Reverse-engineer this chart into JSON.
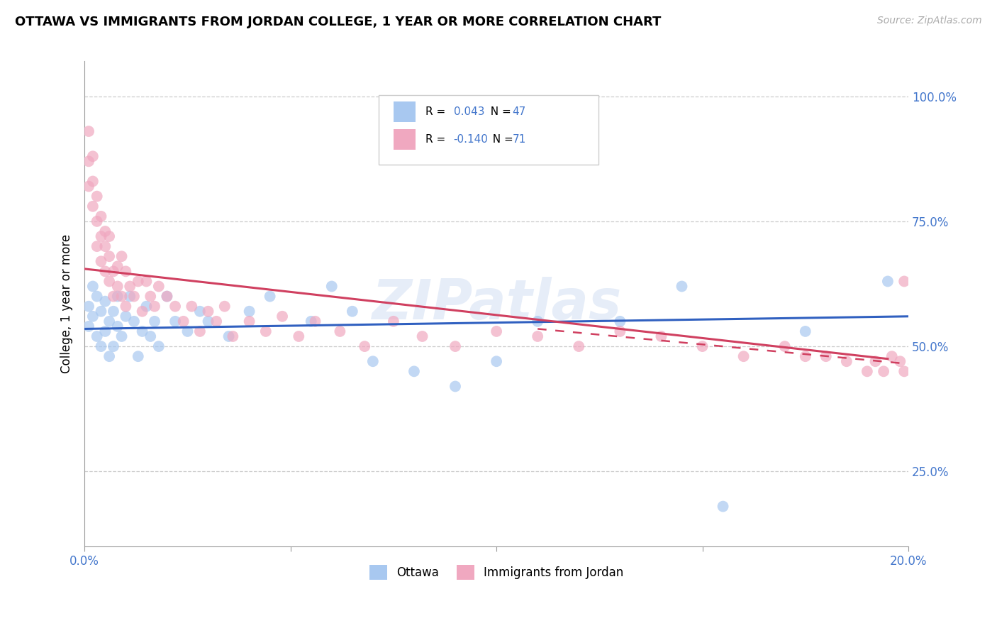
{
  "title": "OTTAWA VS IMMIGRANTS FROM JORDAN COLLEGE, 1 YEAR OR MORE CORRELATION CHART",
  "source": "Source: ZipAtlas.com",
  "ylabel": "College, 1 year or more",
  "legend_ottawa": "Ottawa",
  "legend_jordan": "Immigrants from Jordan",
  "R_ottawa": 0.043,
  "N_ottawa": 47,
  "R_jordan": -0.14,
  "N_jordan": 71,
  "color_ottawa": "#a8c8f0",
  "color_jordan": "#f0a8c0",
  "color_trend_ottawa": "#3060c0",
  "color_trend_jordan": "#d04060",
  "watermark": "ZIPatlas",
  "xlim": [
    0.0,
    0.2
  ],
  "ylim": [
    0.1,
    1.07
  ],
  "yticks": [
    0.25,
    0.5,
    0.75,
    1.0
  ],
  "yticklabels": [
    "25.0%",
    "50.0%",
    "75.0%",
    "100.0%"
  ],
  "xticks": [
    0.0,
    0.05,
    0.1,
    0.15,
    0.2
  ],
  "xticklabels": [
    "0.0%",
    "",
    "",
    "",
    "20.0%"
  ],
  "ottawa_x": [
    0.001,
    0.001,
    0.002,
    0.002,
    0.003,
    0.003,
    0.004,
    0.004,
    0.005,
    0.005,
    0.006,
    0.006,
    0.007,
    0.007,
    0.008,
    0.008,
    0.009,
    0.01,
    0.011,
    0.012,
    0.013,
    0.014,
    0.015,
    0.016,
    0.017,
    0.018,
    0.02,
    0.022,
    0.025,
    0.028,
    0.03,
    0.035,
    0.04,
    0.045,
    0.055,
    0.06,
    0.065,
    0.07,
    0.08,
    0.09,
    0.1,
    0.11,
    0.13,
    0.145,
    0.155,
    0.175,
    0.195
  ],
  "ottawa_y": [
    0.58,
    0.54,
    0.62,
    0.56,
    0.6,
    0.52,
    0.57,
    0.5,
    0.59,
    0.53,
    0.55,
    0.48,
    0.57,
    0.5,
    0.6,
    0.54,
    0.52,
    0.56,
    0.6,
    0.55,
    0.48,
    0.53,
    0.58,
    0.52,
    0.55,
    0.5,
    0.6,
    0.55,
    0.53,
    0.57,
    0.55,
    0.52,
    0.57,
    0.6,
    0.55,
    0.62,
    0.57,
    0.47,
    0.45,
    0.42,
    0.47,
    0.55,
    0.55,
    0.62,
    0.18,
    0.53,
    0.63
  ],
  "jordan_x": [
    0.001,
    0.001,
    0.001,
    0.002,
    0.002,
    0.002,
    0.003,
    0.003,
    0.003,
    0.004,
    0.004,
    0.004,
    0.005,
    0.005,
    0.005,
    0.006,
    0.006,
    0.006,
    0.007,
    0.007,
    0.008,
    0.008,
    0.009,
    0.009,
    0.01,
    0.01,
    0.011,
    0.012,
    0.013,
    0.014,
    0.015,
    0.016,
    0.017,
    0.018,
    0.02,
    0.022,
    0.024,
    0.026,
    0.028,
    0.03,
    0.032,
    0.034,
    0.036,
    0.04,
    0.044,
    0.048,
    0.052,
    0.056,
    0.062,
    0.068,
    0.075,
    0.082,
    0.09,
    0.1,
    0.11,
    0.12,
    0.13,
    0.14,
    0.15,
    0.16,
    0.17,
    0.175,
    0.18,
    0.185,
    0.19,
    0.192,
    0.194,
    0.196,
    0.198,
    0.199,
    0.199
  ],
  "jordan_y": [
    0.93,
    0.87,
    0.82,
    0.88,
    0.83,
    0.78,
    0.8,
    0.75,
    0.7,
    0.76,
    0.72,
    0.67,
    0.7,
    0.65,
    0.73,
    0.68,
    0.63,
    0.72,
    0.65,
    0.6,
    0.66,
    0.62,
    0.68,
    0.6,
    0.65,
    0.58,
    0.62,
    0.6,
    0.63,
    0.57,
    0.63,
    0.6,
    0.58,
    0.62,
    0.6,
    0.58,
    0.55,
    0.58,
    0.53,
    0.57,
    0.55,
    0.58,
    0.52,
    0.55,
    0.53,
    0.56,
    0.52,
    0.55,
    0.53,
    0.5,
    0.55,
    0.52,
    0.5,
    0.53,
    0.52,
    0.5,
    0.53,
    0.52,
    0.5,
    0.48,
    0.5,
    0.48,
    0.48,
    0.47,
    0.45,
    0.47,
    0.45,
    0.48,
    0.47,
    0.45,
    0.63
  ],
  "trend_ottawa_x0": 0.0,
  "trend_ottawa_x1": 0.2,
  "trend_ottawa_y0": 0.535,
  "trend_ottawa_y1": 0.56,
  "trend_jordan_solid_x0": 0.0,
  "trend_jordan_solid_x1": 0.195,
  "trend_jordan_solid_y0": 0.655,
  "trend_jordan_solid_y1": 0.475,
  "trend_jordan_dash_x0": 0.11,
  "trend_jordan_dash_x1": 0.2,
  "trend_jordan_dash_y0": 0.535,
  "trend_jordan_dash_y1": 0.465
}
